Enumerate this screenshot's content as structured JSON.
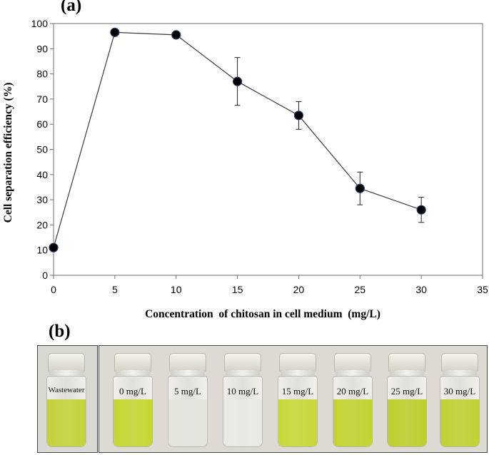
{
  "panel_a_label": "(a)",
  "panel_b_label": "(b)",
  "chart_data": {
    "type": "line",
    "title": "",
    "xlabel": "Concentration  of chitosan in cell medium  (mg/L)",
    "ylabel": "Cell separation efficiency (%)",
    "xlim": [
      0,
      35
    ],
    "ylim": [
      0,
      100
    ],
    "xticks": [
      0,
      5,
      10,
      15,
      20,
      25,
      30,
      35
    ],
    "yticks": [
      0,
      10,
      20,
      30,
      40,
      50,
      60,
      70,
      80,
      90,
      100
    ],
    "grid": false,
    "legend": "none",
    "series": [
      {
        "x": [
          0,
          5,
          10,
          15,
          20,
          25,
          30
        ],
        "y": [
          11,
          96.5,
          95.5,
          77,
          63.5,
          34.5,
          26
        ],
        "error": [
          0,
          0,
          0,
          9.5,
          5.5,
          6.5,
          5
        ]
      }
    ],
    "colors": {
      "line": "#3a3a3a",
      "marker": "#000000",
      "marker_edge": "#2a3f6b"
    }
  },
  "photos": {
    "left": [
      {
        "label": "Wastewater",
        "liquid_color": "#c4d23a"
      }
    ],
    "right": [
      {
        "label": "0 mg/L",
        "liquid_color": "#c6d630"
      },
      {
        "label": "5 mg/L",
        "liquid_color": "#e4e6de"
      },
      {
        "label": "10 mg/L",
        "liquid_color": "#e9eae4"
      },
      {
        "label": "15 mg/L",
        "liquid_color": "#c8d836"
      },
      {
        "label": "20 mg/L",
        "liquid_color": "#c2d32e"
      },
      {
        "label": "25 mg/L",
        "liquid_color": "#bccf2c"
      },
      {
        "label": "30 mg/L",
        "liquid_color": "#c0d132"
      }
    ]
  }
}
